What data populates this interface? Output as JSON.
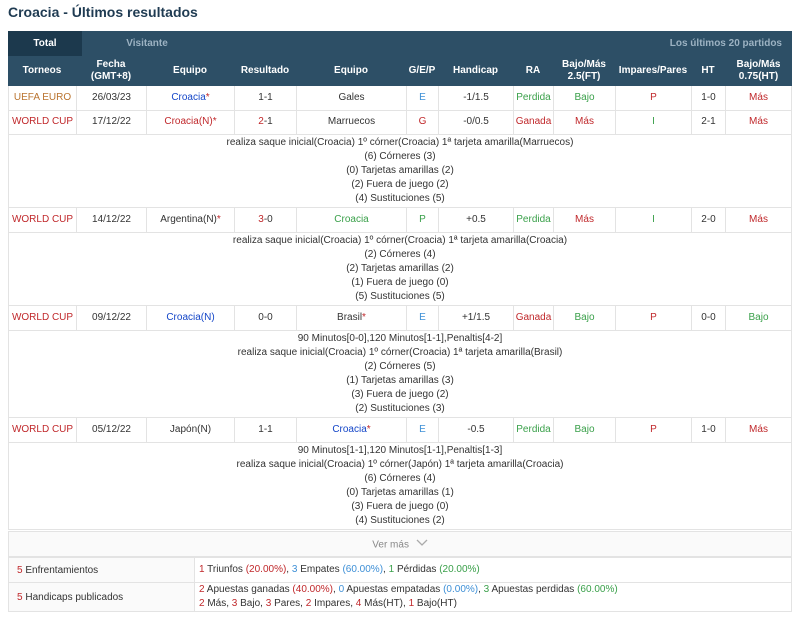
{
  "page_title": "Croacia - Últimos resultados",
  "tabs": {
    "total": "Total",
    "visitor": "Visitante",
    "last": "Los últimos 20 partidos"
  },
  "headers": {
    "torneos": "Torneos",
    "fecha_1": "Fecha",
    "fecha_2": "(GMT+8)",
    "equipo_home": "Equipo",
    "resultado": "Resultado",
    "equipo_away": "Equipo",
    "gep": "G/E/P",
    "handicap": "Handicap",
    "ra": "RA",
    "bajo_mas_1": "Bajo/Más",
    "bajo_mas_2": "2.5(FT)",
    "impares": "Impares/Pares",
    "ht": "HT",
    "bajo_mas_ht_1": "Bajo/Más",
    "bajo_mas_ht_2": "0.75(HT)"
  },
  "matches": [
    {
      "torneo": "UEFA EURO",
      "fecha": "26/03/23",
      "home_name": "Croacia",
      "home_mark": "*",
      "score": "1-1",
      "away_name": "Gales",
      "away_mark": "",
      "gep": "E",
      "handicap": "-1/1.5",
      "ra": "Perdida",
      "bajo_mas": "Bajo",
      "impares": "P",
      "ht": "1-0",
      "bajo_mas_ht": "Más"
    },
    {
      "torneo": "WORLD CUP",
      "fecha": "17/12/22",
      "home_name": "Croacia(N)",
      "home_mark": "*",
      "score_h": "2",
      "score_sep": "-1",
      "away_name": "Marruecos",
      "away_mark": "",
      "gep": "G",
      "handicap": "-0/0.5",
      "ra": "Ganada",
      "bajo_mas": "Más",
      "impares": "I",
      "ht": "2-1",
      "bajo_mas_ht": "Más",
      "details": [
        "realiza saque inicial(Croacia)   1º córner(Croacia)   1ª tarjeta amarilla(Marruecos)",
        "(6) Córneres (3)",
        "(0) Tarjetas amarillas (2)",
        "(2) Fuera de juego (2)",
        "(4) Sustituciones (5)"
      ]
    },
    {
      "torneo": "WORLD CUP",
      "fecha": "14/12/22",
      "home_name": "Argentina(N)",
      "home_mark": "*",
      "score_h": "3",
      "score_sep": "-0",
      "away_name": "Croacia",
      "away_mark": "",
      "gep": "P",
      "handicap": "+0.5",
      "ra": "Perdida",
      "bajo_mas": "Más",
      "impares": "I",
      "ht": "2-0",
      "bajo_mas_ht": "Más",
      "details": [
        "realiza saque inicial(Croacia)   1º córner(Croacia)   1ª tarjeta amarilla(Croacia)",
        "(2) Córneres (4)",
        "(2) Tarjetas amarillas (2)",
        "(1) Fuera de juego (0)",
        "(5) Sustituciones (5)"
      ]
    },
    {
      "torneo": "WORLD CUP",
      "fecha": "09/12/22",
      "home_name": "Croacia(N)",
      "home_mark": "",
      "score": "0-0",
      "away_name": "Brasil",
      "away_mark": "*",
      "gep": "E",
      "handicap": "+1/1.5",
      "ra": "Ganada",
      "bajo_mas": "Bajo",
      "impares": "P",
      "ht": "0-0",
      "bajo_mas_ht": "Bajo",
      "details": [
        "90 Minutos[0-0],120 Minutos[1-1],Penaltis[4-2]",
        "realiza saque inicial(Croacia)   1º córner(Croacia)   1ª tarjeta amarilla(Brasil)",
        "(2) Córneres (5)",
        "(1) Tarjetas amarillas (3)",
        "(3) Fuera de juego (2)",
        "(2) Sustituciones (3)"
      ]
    },
    {
      "torneo": "WORLD CUP",
      "fecha": "05/12/22",
      "home_name": "Japón(N)",
      "home_mark": "",
      "score": "1-1",
      "away_name": "Croacia",
      "away_mark": "*",
      "gep": "E",
      "handicap": "-0.5",
      "ra": "Perdida",
      "bajo_mas": "Bajo",
      "impares": "P",
      "ht": "1-0",
      "bajo_mas_ht": "Más",
      "details": [
        "90 Minutos[1-1],120 Minutos[1-1],Penaltis[1-3]",
        "realiza saque inicial(Croacia)   1º córner(Japón)   1ª tarjeta amarilla(Croacia)",
        "(6) Córneres (4)",
        "(0) Tarjetas amarillas (1)",
        "(3) Fuera de juego (0)",
        "(4) Sustituciones (2)"
      ]
    }
  ],
  "more_label": "Ver más",
  "summary": {
    "enfrentamientos": {
      "count": "5",
      "label": "Enfrentamientos",
      "wins": "1",
      "wins_l": "Triunfos",
      "wins_p": "(20.00%)",
      "draws": "3",
      "draws_l": "Empates",
      "draws_p": "(60.00%)",
      "losses": "1",
      "losses_l": "Pérdidas",
      "losses_p": "(20.00%)"
    },
    "handicaps": {
      "count": "5",
      "label": "Handicaps publicados",
      "won": "2",
      "won_l": "Apuestas ganadas",
      "won_p": "(40.00%)",
      "tied": "0",
      "tied_l": "Apuestas empatadas",
      "tied_p": "(0.00%)",
      "lost": "3",
      "lost_l": "Apuestas perdidas",
      "lost_p": "(60.00%)",
      "mas": "2",
      "mas_l": "Más,",
      "bajo": "3",
      "bajo_l": "Bajo,",
      "pares": "3",
      "pares_l": "Pares,",
      "impares": "2",
      "impares_l": "Impares,",
      "mas_ht": "4",
      "mas_ht_l": "Más(HT),",
      "bajo_ht": "1",
      "bajo_ht_l": "Bajo(HT)"
    }
  }
}
